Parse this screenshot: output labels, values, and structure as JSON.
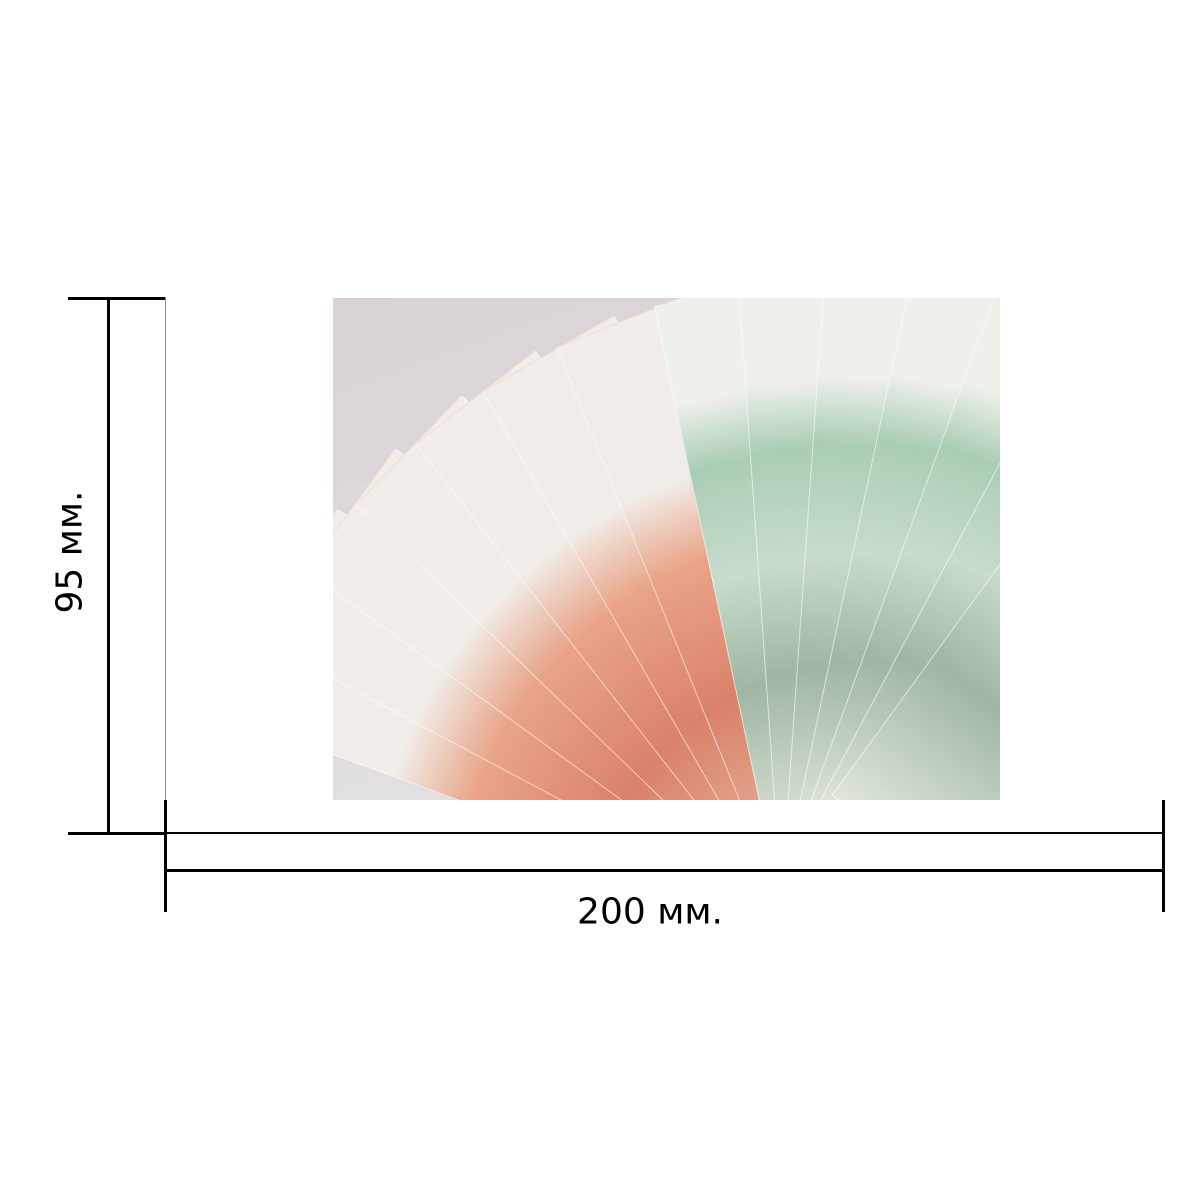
{
  "dimensions": {
    "height_label": "95 мм.",
    "width_label": "200 мм."
  },
  "photo": {
    "subject": "banknotes-fan",
    "colors": {
      "note_5000": "#d9826a",
      "note_1000": "#a9cdb4",
      "background": "#ded9dc"
    }
  }
}
